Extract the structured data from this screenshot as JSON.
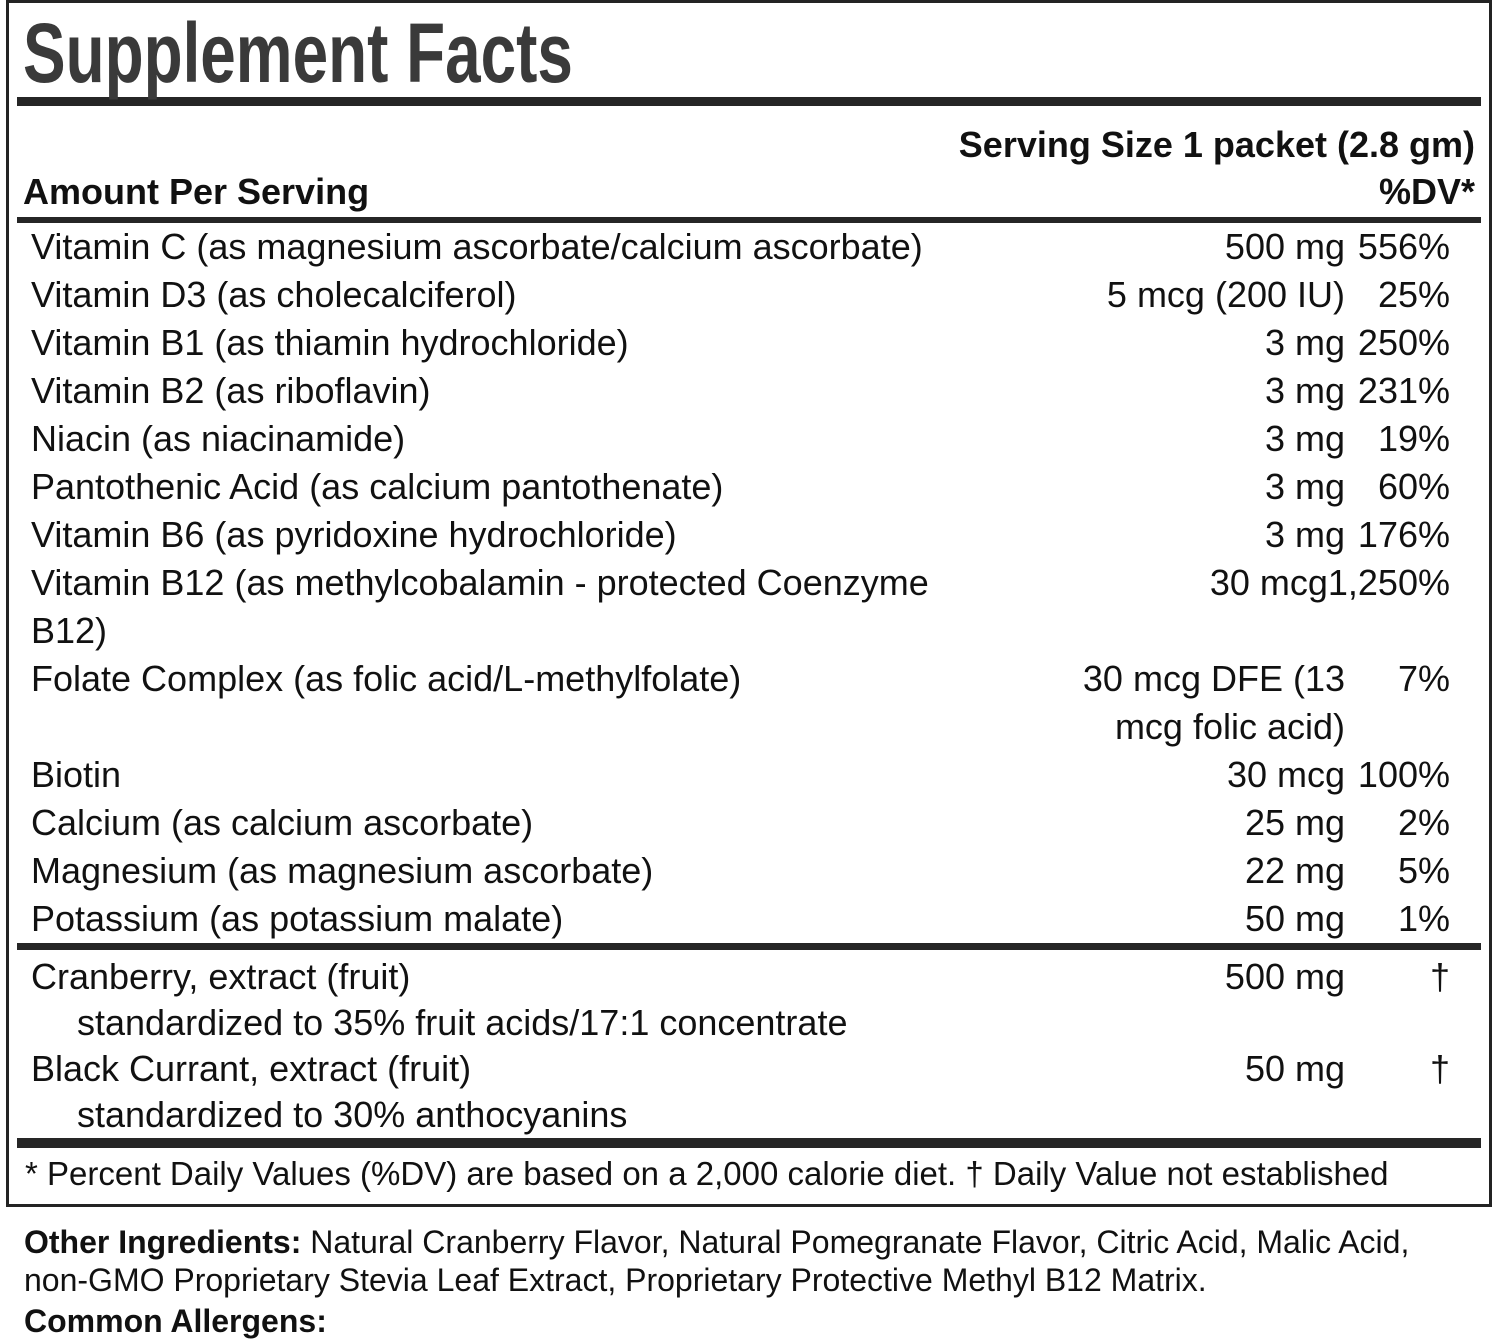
{
  "title": "Supplement Facts",
  "serving_size": "Serving Size 1 packet (2.8 gm)",
  "headers": {
    "amount": "Amount Per Serving",
    "dv": "%DV*"
  },
  "nutrients": [
    {
      "name": "Vitamin C (as magnesium ascorbate/calcium ascorbate)",
      "amount": "500 mg",
      "dv": "556%"
    },
    {
      "name": "Vitamin D3 (as cholecalciferol)",
      "amount": "5 mcg (200 IU)",
      "dv": "25%"
    },
    {
      "name": "Vitamin B1 (as thiamin hydrochloride)",
      "amount": "3 mg",
      "dv": "250%"
    },
    {
      "name": "Vitamin B2 (as riboflavin)",
      "amount": "3 mg",
      "dv": "231%"
    },
    {
      "name": "Niacin (as niacinamide)",
      "amount": "3 mg",
      "dv": "19%"
    },
    {
      "name": "Pantothenic Acid (as calcium pantothenate)",
      "amount": "3 mg",
      "dv": "60%"
    },
    {
      "name": "Vitamin B6 (as pyridoxine hydrochloride)",
      "amount": "3 mg",
      "dv": "176%"
    },
    {
      "name": "Vitamin B12 (as methylcobalamin - protected Coenzyme\nB12)",
      "amount": "30 mcg",
      "dv": "1,250%"
    },
    {
      "name": "Folate Complex (as folic acid/L-methylfolate)",
      "amount": "30 mcg DFE (13\nmcg folic acid)",
      "dv": "7%"
    },
    {
      "name": "Biotin",
      "amount": "30 mcg",
      "dv": "100%"
    },
    {
      "name": "Calcium (as calcium ascorbate)",
      "amount": "25 mg",
      "dv": "2%"
    },
    {
      "name": "Magnesium (as magnesium ascorbate)",
      "amount": "22 mg",
      "dv": "5%"
    },
    {
      "name": "Potassium (as potassium malate)",
      "amount": "50 mg",
      "dv": "1%"
    }
  ],
  "botanicals": [
    {
      "name": "Cranberry, extract (fruit)",
      "amount": "500 mg",
      "dv": "†",
      "note": "standardized to 35% fruit acids/17:1 concentrate"
    },
    {
      "name": "Black Currant, extract (fruit)",
      "amount": "50 mg",
      "dv": "†",
      "note": "standardized to 30% anthocyanins"
    }
  ],
  "footnote": "* Percent Daily Values (%DV) are based on a 2,000 calorie diet. † Daily Value not established",
  "other_ingredients_label": "Other Ingredients:",
  "other_ingredients": "Natural Cranberry Flavor, Natural Pomegranate Flavor, Citric Acid, Malic Acid, non-GMO Proprietary Stevia Leaf Extract, Proprietary Protective Methyl B12 Matrix.",
  "allergens_label": "Common Allergens:",
  "colors": {
    "rule": "#262626",
    "title_text": "#3a3a3a",
    "body_text": "#111111"
  }
}
